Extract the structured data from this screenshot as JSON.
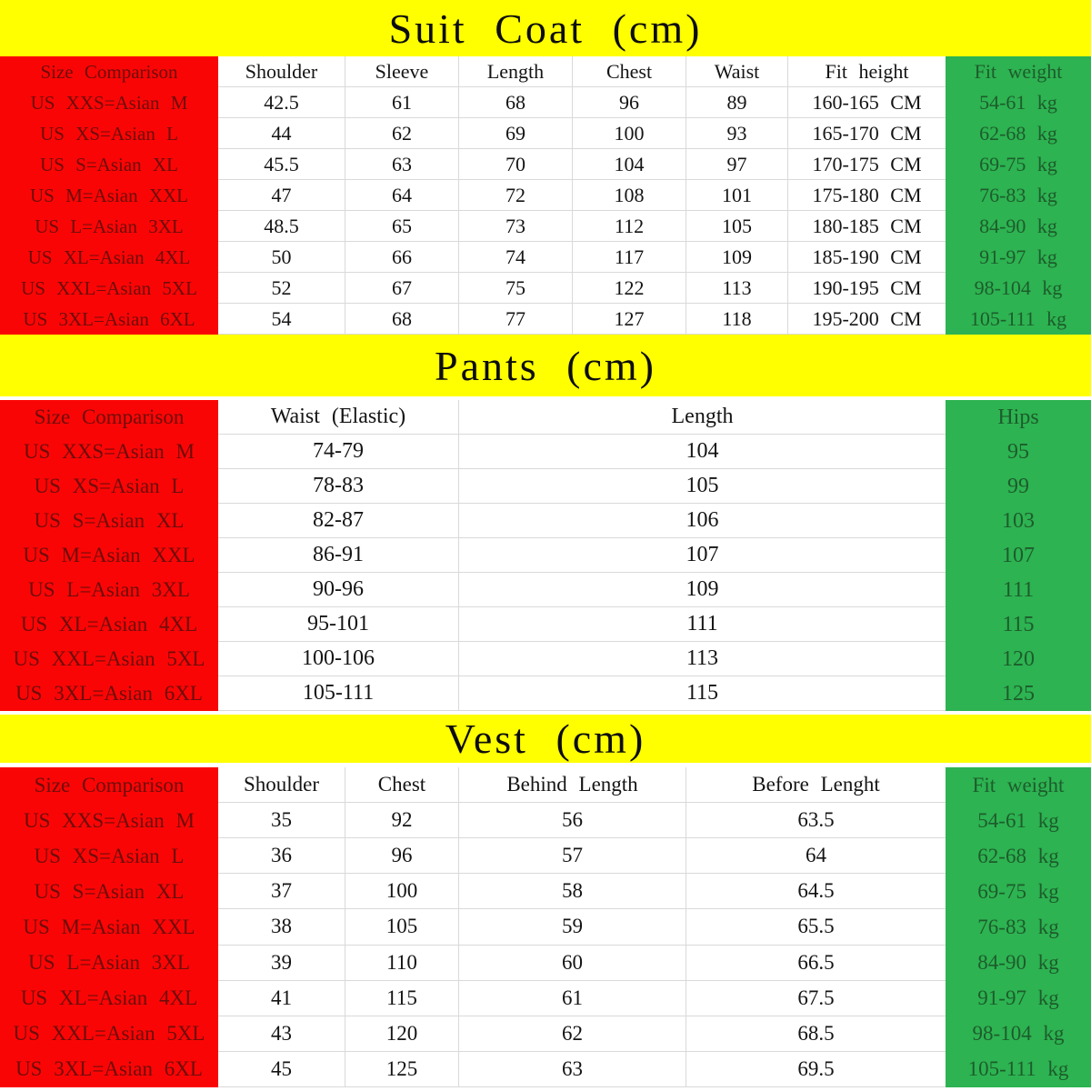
{
  "colors": {
    "band_bg": "#ffff00",
    "red_bg": "#fa0505",
    "green_bg": "#2db351",
    "red_text": "#6d0d0b",
    "green_text": "#1d5c2c",
    "text": "#141414",
    "gridline": "#d9d9d9",
    "white_bg": "#ffffff"
  },
  "sections": [
    {
      "id": "suit-coat",
      "title": "Suit Coat (cm)",
      "columns": [
        "Size Comparison",
        "Shoulder",
        "Sleeve",
        "Length",
        "Chest",
        "Waist",
        "Fit height",
        "Fit weight"
      ],
      "rows": [
        [
          "US XXS=Asian M",
          "42.5",
          "61",
          "68",
          "96",
          "89",
          "160-165 CM",
          "54-61 kg"
        ],
        [
          "US XS=Asian L",
          "44",
          "62",
          "69",
          "100",
          "93",
          "165-170 CM",
          "62-68 kg"
        ],
        [
          "US S=Asian XL",
          "45.5",
          "63",
          "70",
          "104",
          "97",
          "170-175 CM",
          "69-75 kg"
        ],
        [
          "US M=Asian XXL",
          "47",
          "64",
          "72",
          "108",
          "101",
          "175-180 CM",
          "76-83 kg"
        ],
        [
          "US L=Asian 3XL",
          "48.5",
          "65",
          "73",
          "112",
          "105",
          "180-185 CM",
          "84-90 kg"
        ],
        [
          "US XL=Asian 4XL",
          "50",
          "66",
          "74",
          "117",
          "109",
          "185-190 CM",
          "91-97 kg"
        ],
        [
          "US XXL=Asian 5XL",
          "52",
          "67",
          "75",
          "122",
          "113",
          "190-195 CM",
          "98-104 kg"
        ],
        [
          "US 3XL=Asian 6XL",
          "54",
          "68",
          "77",
          "127",
          "118",
          "195-200 CM",
          "105-111 kg"
        ]
      ]
    },
    {
      "id": "pants",
      "title": "Pants (cm)",
      "columns": [
        "Size Comparison",
        "Waist (Elastic)",
        "Length",
        "Hips"
      ],
      "rows": [
        [
          "US XXS=Asian M",
          "74-79",
          "104",
          "95"
        ],
        [
          "US XS=Asian L",
          "78-83",
          "105",
          "99"
        ],
        [
          "US S=Asian XL",
          "82-87",
          "106",
          "103"
        ],
        [
          "US M=Asian XXL",
          "86-91",
          "107",
          "107"
        ],
        [
          "US L=Asian 3XL",
          "90-96",
          "109",
          "111"
        ],
        [
          "US XL=Asian 4XL",
          "95-101",
          "111",
          "115"
        ],
        [
          "US XXL=Asian 5XL",
          "100-106",
          "113",
          "120"
        ],
        [
          "US 3XL=Asian 6XL",
          "105-111",
          "115",
          "125"
        ]
      ]
    },
    {
      "id": "vest",
      "title": "Vest (cm)",
      "columns": [
        "Size Comparison",
        "Shoulder",
        "Chest",
        "Behind Length",
        "Before Lenght",
        "Fit weight"
      ],
      "rows": [
        [
          "US XXS=Asian M",
          "35",
          "92",
          "56",
          "63.5",
          "54-61 kg"
        ],
        [
          "US XS=Asian L",
          "36",
          "96",
          "57",
          "64",
          "62-68 kg"
        ],
        [
          "US S=Asian XL",
          "37",
          "100",
          "58",
          "64.5",
          "69-75 kg"
        ],
        [
          "US M=Asian XXL",
          "38",
          "105",
          "59",
          "65.5",
          "76-83 kg"
        ],
        [
          "US L=Asian 3XL",
          "39",
          "110",
          "60",
          "66.5",
          "84-90 kg"
        ],
        [
          "US XL=Asian 4XL",
          "41",
          "115",
          "61",
          "67.5",
          "91-97 kg"
        ],
        [
          "US XXL=Asian 5XL",
          "43",
          "120",
          "62",
          "68.5",
          "98-104 kg"
        ],
        [
          "US 3XL=Asian 6XL",
          "45",
          "125",
          "63",
          "69.5",
          "105-111 kg"
        ]
      ]
    }
  ]
}
